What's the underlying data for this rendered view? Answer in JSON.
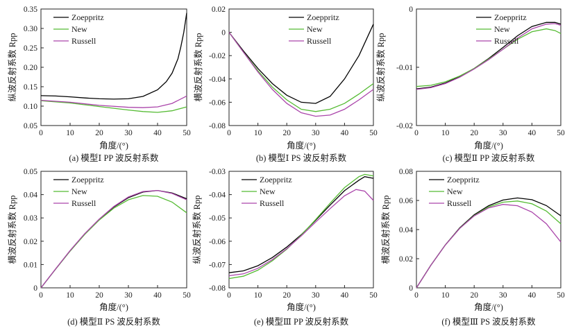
{
  "chart_data": [
    {
      "type": "line",
      "caption": "(a) 模型Ⅰ PP 波反射系数",
      "xlabel": "角度/(°)",
      "ylabel": "纵波反射系数 Rpp",
      "xlim": [
        0,
        50
      ],
      "ylim": [
        0.05,
        0.35
      ],
      "xticks": [
        0,
        10,
        20,
        30,
        40,
        50
      ],
      "yticks": [
        0.05,
        0.1,
        0.15,
        0.2,
        0.25,
        0.3,
        0.35
      ],
      "ytick_labels": [
        "0.05",
        "0.10",
        "0.15",
        "0.20",
        "0.25",
        "0.30",
        "0.35"
      ],
      "legend": "top-left",
      "series": [
        {
          "name": "Zoeppritz",
          "color": "#000000",
          "x": [
            0,
            5,
            10,
            15,
            20,
            25,
            30,
            35,
            40,
            43,
            45,
            47,
            48,
            49,
            50
          ],
          "y": [
            0.127,
            0.126,
            0.124,
            0.121,
            0.119,
            0.118,
            0.119,
            0.125,
            0.142,
            0.163,
            0.185,
            0.222,
            0.253,
            0.29,
            0.34
          ]
        },
        {
          "name": "New",
          "color": "#55bb33",
          "x": [
            0,
            10,
            20,
            30,
            35,
            40,
            45,
            50
          ],
          "y": [
            0.114,
            0.108,
            0.099,
            0.09,
            0.086,
            0.084,
            0.088,
            0.098
          ]
        },
        {
          "name": "Russell",
          "color": "#aa44aa",
          "x": [
            0,
            10,
            20,
            30,
            35,
            40,
            45,
            50
          ],
          "y": [
            0.115,
            0.11,
            0.102,
            0.097,
            0.096,
            0.098,
            0.107,
            0.126
          ]
        }
      ]
    },
    {
      "type": "line",
      "caption": "(b) 模型Ⅰ PS 波反射系数",
      "xlabel": "角度/(°)",
      "ylabel": "横波反射系数 Rpp",
      "xlim": [
        0,
        50
      ],
      "ylim": [
        -0.08,
        0.02
      ],
      "xticks": [
        0,
        10,
        20,
        30,
        40,
        50
      ],
      "yticks": [
        -0.08,
        -0.06,
        -0.04,
        -0.02,
        0,
        0.02
      ],
      "ytick_labels": [
        "-0.08",
        "-0.06",
        "-0.04",
        "-0.02",
        "0",
        "0.02"
      ],
      "legend": "top-right",
      "series": [
        {
          "name": "Zoeppritz",
          "color": "#000000",
          "x": [
            0,
            5,
            10,
            15,
            20,
            25,
            30,
            35,
            40,
            45,
            50
          ],
          "y": [
            0,
            -0.016,
            -0.031,
            -0.044,
            -0.054,
            -0.06,
            -0.061,
            -0.055,
            -0.04,
            -0.02,
            0.007
          ]
        },
        {
          "name": "New",
          "color": "#55bb33",
          "x": [
            0,
            5,
            10,
            15,
            20,
            25,
            30,
            35,
            40,
            45,
            50
          ],
          "y": [
            0,
            -0.017,
            -0.033,
            -0.047,
            -0.058,
            -0.066,
            -0.068,
            -0.066,
            -0.061,
            -0.053,
            -0.044
          ]
        },
        {
          "name": "Russell",
          "color": "#aa44aa",
          "x": [
            0,
            5,
            10,
            15,
            20,
            25,
            30,
            35,
            40,
            45,
            50
          ],
          "y": [
            0,
            -0.017,
            -0.034,
            -0.049,
            -0.061,
            -0.069,
            -0.072,
            -0.071,
            -0.066,
            -0.058,
            -0.049
          ]
        }
      ]
    },
    {
      "type": "line",
      "caption": "(c) 模型Ⅱ PP 波反射系数",
      "xlabel": "角度/(°)",
      "ylabel": "纵波反射系数 Rpp",
      "xlim": [
        0,
        50
      ],
      "ylim": [
        -0.02,
        0
      ],
      "xticks": [
        0,
        10,
        20,
        30,
        40,
        50
      ],
      "yticks": [
        -0.02,
        -0.01,
        0
      ],
      "ytick_labels": [
        "-0.02",
        "-0.01",
        "0"
      ],
      "legend": "top-right",
      "series": [
        {
          "name": "Zoeppritz",
          "color": "#000000",
          "x": [
            0,
            5,
            10,
            15,
            20,
            25,
            30,
            35,
            40,
            45,
            48,
            50
          ],
          "y": [
            -0.0137,
            -0.0134,
            -0.0127,
            -0.0116,
            -0.0102,
            -0.0085,
            -0.0066,
            -0.0046,
            -0.003,
            -0.0023,
            -0.0023,
            -0.0026
          ]
        },
        {
          "name": "New",
          "color": "#55bb33",
          "x": [
            0,
            5,
            10,
            15,
            20,
            25,
            30,
            35,
            40,
            45,
            48,
            50
          ],
          "y": [
            -0.0133,
            -0.0131,
            -0.0125,
            -0.0115,
            -0.0102,
            -0.0086,
            -0.0069,
            -0.0052,
            -0.0039,
            -0.0034,
            -0.0037,
            -0.0042
          ]
        },
        {
          "name": "Russell",
          "color": "#aa44aa",
          "x": [
            0,
            5,
            10,
            15,
            20,
            25,
            30,
            35,
            40,
            45,
            48,
            50
          ],
          "y": [
            -0.0138,
            -0.0135,
            -0.0128,
            -0.0117,
            -0.0103,
            -0.0087,
            -0.0069,
            -0.005,
            -0.0034,
            -0.0026,
            -0.0025,
            -0.0028
          ]
        }
      ]
    },
    {
      "type": "line",
      "caption": "(d) 模型Ⅱ PS 波反射系数",
      "xlabel": "角度/(°)",
      "ylabel": "横波反射系数 Rpp",
      "xlim": [
        0,
        50
      ],
      "ylim": [
        0,
        0.05
      ],
      "xticks": [
        0,
        10,
        20,
        30,
        40,
        50
      ],
      "yticks": [
        0,
        0.01,
        0.02,
        0.03,
        0.04,
        0.05
      ],
      "ytick_labels": [
        "0",
        "0.01",
        "0.02",
        "0.03",
        "0.04",
        "0.05"
      ],
      "legend": "top-left",
      "series": [
        {
          "name": "Zoeppritz",
          "color": "#000000",
          "x": [
            0,
            5,
            10,
            15,
            20,
            25,
            30,
            35,
            40,
            45,
            50
          ],
          "y": [
            0,
            0.008,
            0.0158,
            0.023,
            0.0293,
            0.0347,
            0.0387,
            0.0411,
            0.0418,
            0.0407,
            0.0382
          ]
        },
        {
          "name": "New",
          "color": "#55bb33",
          "x": [
            0,
            5,
            10,
            15,
            20,
            25,
            30,
            35,
            40,
            45,
            50
          ],
          "y": [
            0,
            0.008,
            0.0158,
            0.0229,
            0.0291,
            0.0342,
            0.0378,
            0.0396,
            0.0393,
            0.0368,
            0.0322
          ]
        },
        {
          "name": "Russell",
          "color": "#aa44aa",
          "x": [
            0,
            5,
            10,
            15,
            20,
            25,
            30,
            35,
            40,
            45,
            50
          ],
          "y": [
            0,
            0.0081,
            0.016,
            0.0232,
            0.0295,
            0.0349,
            0.039,
            0.0413,
            0.0418,
            0.0405,
            0.0378
          ]
        }
      ]
    },
    {
      "type": "line",
      "caption": "(e) 模型Ⅲ PP 波反射系数",
      "xlabel": "角度/(°)",
      "ylabel": "纵波反射系数 Rpp",
      "xlim": [
        0,
        50
      ],
      "ylim": [
        -0.08,
        -0.03
      ],
      "xticks": [
        0,
        10,
        20,
        30,
        40,
        50
      ],
      "yticks": [
        -0.08,
        -0.07,
        -0.06,
        -0.05,
        -0.04,
        -0.03
      ],
      "ytick_labels": [
        "-0.08",
        "-0.07",
        "-0.06",
        "-0.05",
        "-0.04",
        "-0.03"
      ],
      "legend": "top-left",
      "series": [
        {
          "name": "Zoeppritz",
          "color": "#000000",
          "x": [
            0,
            5,
            10,
            15,
            20,
            25,
            30,
            35,
            40,
            45,
            47,
            50
          ],
          "y": [
            -0.0735,
            -0.0727,
            -0.0705,
            -0.067,
            -0.0625,
            -0.0572,
            -0.051,
            -0.0445,
            -0.0383,
            -0.0338,
            -0.0323,
            -0.033
          ]
        },
        {
          "name": "New",
          "color": "#55bb33",
          "x": [
            0,
            5,
            10,
            15,
            20,
            25,
            30,
            35,
            40,
            45,
            47,
            50
          ],
          "y": [
            -0.076,
            -0.075,
            -0.0724,
            -0.0684,
            -0.0634,
            -0.0574,
            -0.0507,
            -0.0437,
            -0.037,
            -0.0323,
            -0.0313,
            -0.032
          ]
        },
        {
          "name": "Russell",
          "color": "#aa44aa",
          "x": [
            0,
            5,
            10,
            15,
            20,
            25,
            30,
            35,
            40,
            44,
            47,
            50
          ],
          "y": [
            -0.0748,
            -0.074,
            -0.0716,
            -0.0679,
            -0.0632,
            -0.0577,
            -0.0518,
            -0.046,
            -0.0405,
            -0.0378,
            -0.0385,
            -0.0425
          ]
        }
      ]
    },
    {
      "type": "line",
      "caption": "(f) 模型Ⅲ PS 波反射系数",
      "xlabel": "角度/(°)",
      "ylabel": "横波反射系数 Rpp",
      "xlim": [
        0,
        50
      ],
      "ylim": [
        0,
        0.08
      ],
      "xticks": [
        0,
        10,
        20,
        30,
        40,
        50
      ],
      "yticks": [
        0,
        0.02,
        0.04,
        0.06,
        0.08
      ],
      "ytick_labels": [
        "0",
        "0.02",
        "0.04",
        "0.06",
        "0.08"
      ],
      "legend": "top-left",
      "series": [
        {
          "name": "Zoeppritz",
          "color": "#000000",
          "x": [
            0,
            5,
            10,
            15,
            20,
            25,
            30,
            35,
            40,
            45,
            50
          ],
          "y": [
            0,
            0.0155,
            0.0295,
            0.0412,
            0.0502,
            0.0564,
            0.0603,
            0.0617,
            0.0605,
            0.0565,
            0.0495
          ]
        },
        {
          "name": "New",
          "color": "#55bb33",
          "x": [
            0,
            5,
            10,
            15,
            20,
            25,
            30,
            35,
            40,
            45,
            50
          ],
          "y": [
            0,
            0.0155,
            0.0294,
            0.0409,
            0.0496,
            0.0555,
            0.0588,
            0.0596,
            0.0577,
            0.0527,
            0.044
          ]
        },
        {
          "name": "Russell",
          "color": "#aa44aa",
          "x": [
            0,
            5,
            10,
            15,
            20,
            25,
            30,
            35,
            40,
            45,
            50
          ],
          "y": [
            0,
            0.0155,
            0.0294,
            0.0408,
            0.0494,
            0.0549,
            0.0573,
            0.0564,
            0.052,
            0.044,
            0.0315
          ]
        }
      ]
    }
  ]
}
